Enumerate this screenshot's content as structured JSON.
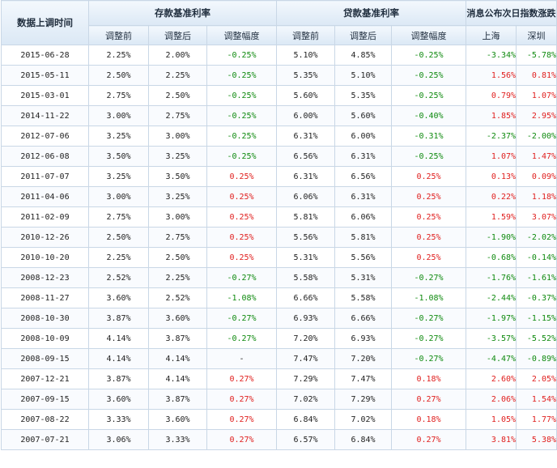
{
  "header": {
    "date_col": "数据上调时间",
    "deposit_group": "存款基准利率",
    "loan_group": "贷款基准利率",
    "index_group": "消息公布次日指数涨跌",
    "sub": {
      "before": "调整前",
      "after": "调整后",
      "change": "调整幅度",
      "sh": "上海",
      "sz": "深圳"
    }
  },
  "colors": {
    "up": "#e0201f",
    "down": "#0f8a0f",
    "neutral": "#222222"
  },
  "rows": [
    {
      "date": "2015-06-28",
      "dep_before": "2.25%",
      "dep_after": "2.00%",
      "dep_change": "-0.25%",
      "loan_before": "5.10%",
      "loan_after": "4.85%",
      "loan_change": "-0.25%",
      "sh": "-3.34%",
      "sz": "-5.78%"
    },
    {
      "date": "2015-05-11",
      "dep_before": "2.50%",
      "dep_after": "2.25%",
      "dep_change": "-0.25%",
      "loan_before": "5.35%",
      "loan_after": "5.10%",
      "loan_change": "-0.25%",
      "sh": "1.56%",
      "sz": "0.81%"
    },
    {
      "date": "2015-03-01",
      "dep_before": "2.75%",
      "dep_after": "2.50%",
      "dep_change": "-0.25%",
      "loan_before": "5.60%",
      "loan_after": "5.35%",
      "loan_change": "-0.25%",
      "sh": "0.79%",
      "sz": "1.07%"
    },
    {
      "date": "2014-11-22",
      "dep_before": "3.00%",
      "dep_after": "2.75%",
      "dep_change": "-0.25%",
      "loan_before": "6.00%",
      "loan_after": "5.60%",
      "loan_change": "-0.40%",
      "sh": "1.85%",
      "sz": "2.95%"
    },
    {
      "date": "2012-07-06",
      "dep_before": "3.25%",
      "dep_after": "3.00%",
      "dep_change": "-0.25%",
      "loan_before": "6.31%",
      "loan_after": "6.00%",
      "loan_change": "-0.31%",
      "sh": "-2.37%",
      "sz": "-2.00%"
    },
    {
      "date": "2012-06-08",
      "dep_before": "3.50%",
      "dep_after": "3.25%",
      "dep_change": "-0.25%",
      "loan_before": "6.56%",
      "loan_after": "6.31%",
      "loan_change": "-0.25%",
      "sh": "1.07%",
      "sz": "1.47%"
    },
    {
      "date": "2011-07-07",
      "dep_before": "3.25%",
      "dep_after": "3.50%",
      "dep_change": "0.25%",
      "loan_before": "6.31%",
      "loan_after": "6.56%",
      "loan_change": "0.25%",
      "sh": "0.13%",
      "sz": "0.09%"
    },
    {
      "date": "2011-04-06",
      "dep_before": "3.00%",
      "dep_after": "3.25%",
      "dep_change": "0.25%",
      "loan_before": "6.06%",
      "loan_after": "6.31%",
      "loan_change": "0.25%",
      "sh": "0.22%",
      "sz": "1.18%"
    },
    {
      "date": "2011-02-09",
      "dep_before": "2.75%",
      "dep_after": "3.00%",
      "dep_change": "0.25%",
      "loan_before": "5.81%",
      "loan_after": "6.06%",
      "loan_change": "0.25%",
      "sh": "1.59%",
      "sz": "3.07%"
    },
    {
      "date": "2010-12-26",
      "dep_before": "2.50%",
      "dep_after": "2.75%",
      "dep_change": "0.25%",
      "loan_before": "5.56%",
      "loan_after": "5.81%",
      "loan_change": "0.25%",
      "sh": "-1.90%",
      "sz": "-2.02%"
    },
    {
      "date": "2010-10-20",
      "dep_before": "2.25%",
      "dep_after": "2.50%",
      "dep_change": "0.25%",
      "loan_before": "5.31%",
      "loan_after": "5.56%",
      "loan_change": "0.25%",
      "sh": "-0.68%",
      "sz": "-0.14%"
    },
    {
      "date": "2008-12-23",
      "dep_before": "2.52%",
      "dep_after": "2.25%",
      "dep_change": "-0.27%",
      "loan_before": "5.58%",
      "loan_after": "5.31%",
      "loan_change": "-0.27%",
      "sh": "-1.76%",
      "sz": "-1.61%"
    },
    {
      "date": "2008-11-27",
      "dep_before": "3.60%",
      "dep_after": "2.52%",
      "dep_change": "-1.08%",
      "loan_before": "6.66%",
      "loan_after": "5.58%",
      "loan_change": "-1.08%",
      "sh": "-2.44%",
      "sz": "-0.37%"
    },
    {
      "date": "2008-10-30",
      "dep_before": "3.87%",
      "dep_after": "3.60%",
      "dep_change": "-0.27%",
      "loan_before": "6.93%",
      "loan_after": "6.66%",
      "loan_change": "-0.27%",
      "sh": "-1.97%",
      "sz": "-1.15%"
    },
    {
      "date": "2008-10-09",
      "dep_before": "4.14%",
      "dep_after": "3.87%",
      "dep_change": "-0.27%",
      "loan_before": "7.20%",
      "loan_after": "6.93%",
      "loan_change": "-0.27%",
      "sh": "-3.57%",
      "sz": "-5.52%"
    },
    {
      "date": "2008-09-15",
      "dep_before": "4.14%",
      "dep_after": "4.14%",
      "dep_change": "-",
      "loan_before": "7.47%",
      "loan_after": "7.20%",
      "loan_change": "-0.27%",
      "sh": "-4.47%",
      "sz": "-0.89%"
    },
    {
      "date": "2007-12-21",
      "dep_before": "3.87%",
      "dep_after": "4.14%",
      "dep_change": "0.27%",
      "loan_before": "7.29%",
      "loan_after": "7.47%",
      "loan_change": "0.18%",
      "sh": "2.60%",
      "sz": "2.05%"
    },
    {
      "date": "2007-09-15",
      "dep_before": "3.60%",
      "dep_after": "3.87%",
      "dep_change": "0.27%",
      "loan_before": "7.02%",
      "loan_after": "7.29%",
      "loan_change": "0.27%",
      "sh": "2.06%",
      "sz": "1.54%"
    },
    {
      "date": "2007-08-22",
      "dep_before": "3.33%",
      "dep_after": "3.60%",
      "dep_change": "0.27%",
      "loan_before": "6.84%",
      "loan_after": "7.02%",
      "loan_change": "0.18%",
      "sh": "1.05%",
      "sz": "1.77%"
    },
    {
      "date": "2007-07-21",
      "dep_before": "3.06%",
      "dep_after": "3.33%",
      "dep_change": "0.27%",
      "loan_before": "6.57%",
      "loan_after": "6.84%",
      "loan_change": "0.27%",
      "sh": "3.81%",
      "sz": "5.38%"
    }
  ]
}
